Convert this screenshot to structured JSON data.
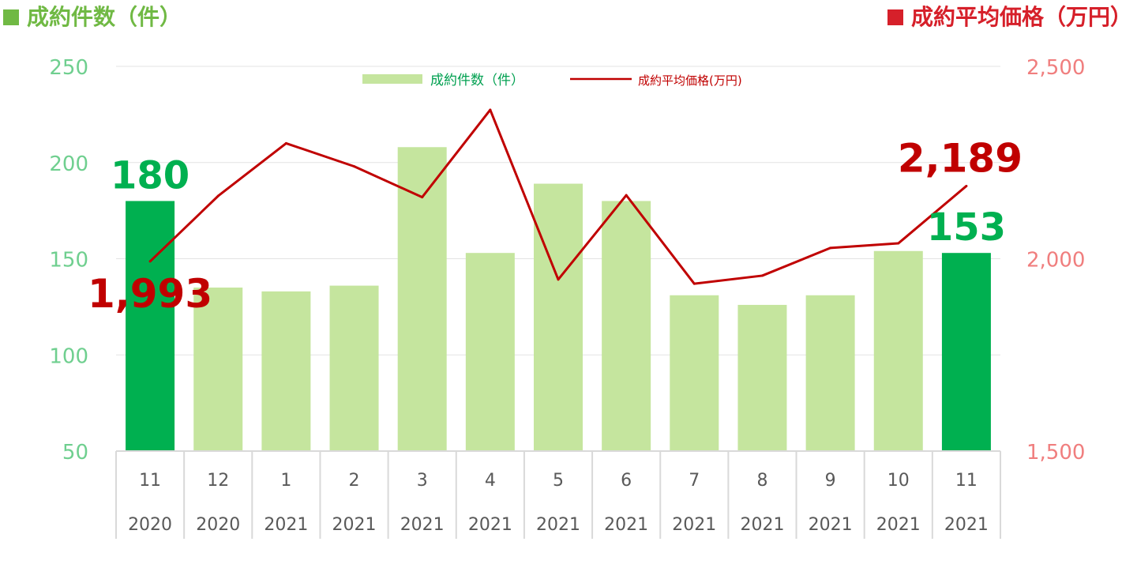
{
  "header": {
    "left_title": "成約件数（件）",
    "right_title": "成約平均価格（万円）",
    "left_color": "#70b944",
    "right_color": "#d6202a"
  },
  "legend": {
    "bar_label": "成約件数（件）",
    "line_label": "成約平均価格(万円)",
    "bar_color": "#c5e59e",
    "line_color": "#c00000"
  },
  "chart_data": {
    "type": "bar",
    "categories": [
      {
        "month": "11",
        "year": "2020"
      },
      {
        "month": "12",
        "year": "2020"
      },
      {
        "month": "1",
        "year": "2021"
      },
      {
        "month": "2",
        "year": "2021"
      },
      {
        "month": "3",
        "year": "2021"
      },
      {
        "month": "4",
        "year": "2021"
      },
      {
        "month": "5",
        "year": "2021"
      },
      {
        "month": "6",
        "year": "2021"
      },
      {
        "month": "7",
        "year": "2021"
      },
      {
        "month": "8",
        "year": "2021"
      },
      {
        "month": "9",
        "year": "2021"
      },
      {
        "month": "10",
        "year": "2021"
      },
      {
        "month": "11",
        "year": "2021"
      }
    ],
    "series": [
      {
        "name": "成約件数（件）",
        "type": "bar",
        "axis": "left",
        "values": [
          180,
          135,
          133,
          136,
          208,
          153,
          189,
          180,
          131,
          126,
          131,
          154,
          153
        ],
        "highlight_indices": [
          0,
          12
        ],
        "color": "#c5e59e",
        "highlight_color": "#00b050"
      },
      {
        "name": "成約平均価格(万円)",
        "type": "line",
        "axis": "right",
        "values": [
          1993,
          2163,
          2300,
          2240,
          2160,
          2387,
          1946,
          2165,
          1935,
          1956,
          2028,
          2040,
          2189
        ],
        "color": "#c00000"
      }
    ],
    "left_axis": {
      "min": 50,
      "max": 250,
      "ticks": [
        "50",
        "100",
        "150",
        "200",
        "250"
      ]
    },
    "right_axis": {
      "min": 1500,
      "max": 2500,
      "ticks": [
        "1,500",
        "2,000",
        "2,500"
      ]
    },
    "grid": true,
    "legend_position": "top-center",
    "annotations": [
      {
        "label": "180",
        "color": "#00b050"
      },
      {
        "label": "1,993",
        "color": "#c00000"
      },
      {
        "label": "153",
        "color": "#00b050"
      },
      {
        "label": "2,189",
        "color": "#c00000"
      }
    ]
  }
}
